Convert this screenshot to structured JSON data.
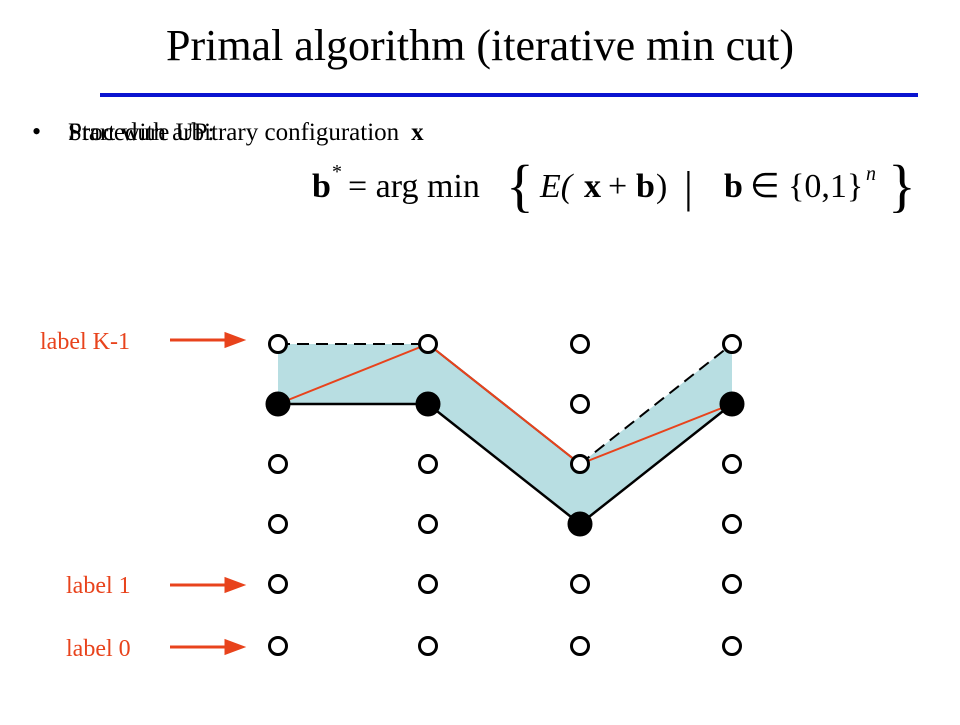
{
  "header": {
    "title": "Primal algorithm (iterative min cut)"
  },
  "bullets": [
    {
      "text": "Start with arbitrary configuration",
      "symbol": "x"
    },
    {
      "text": "Procedure UP:"
    }
  ],
  "formula": {
    "lhs": "b",
    "star": "*",
    "argmin": "= arg min",
    "open": "{",
    "energy": "E(",
    "x": "x",
    "plus": "+",
    "b": "b",
    "close_paren": ")",
    "bar": "|",
    "b2": "b",
    "in_set": "∈ {0,1}",
    "n": "n",
    "close": "}"
  },
  "labels": [
    "label K-1",
    "label 1",
    "label 0"
  ]
}
